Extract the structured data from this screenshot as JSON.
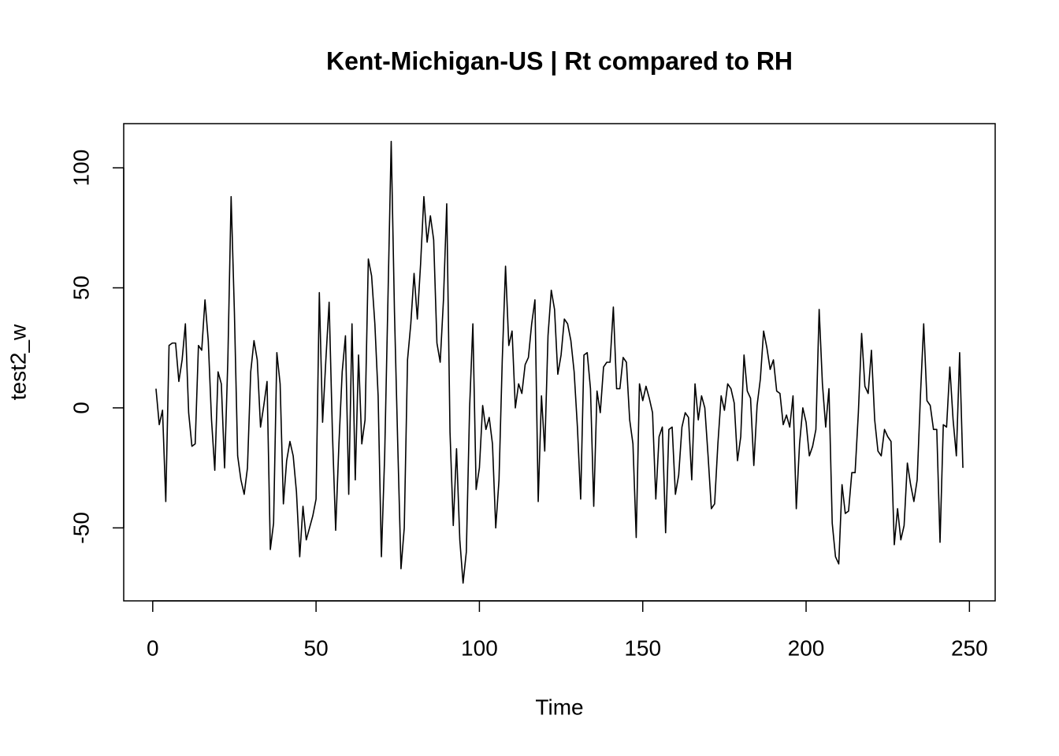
{
  "chart_data": {
    "type": "line",
    "title": "Kent-Michigan-US | Rt compared to RH",
    "x_label": "Time",
    "y_label": "test2_w",
    "x": [
      1,
      2,
      3,
      4,
      5,
      6,
      7,
      8,
      9,
      10,
      11,
      12,
      13,
      14,
      15,
      16,
      17,
      18,
      19,
      20,
      21,
      22,
      23,
      24,
      25,
      26,
      27,
      28,
      29,
      30,
      31,
      32,
      33,
      34,
      35,
      36,
      37,
      38,
      39,
      40,
      41,
      42,
      43,
      44,
      45,
      46,
      47,
      48,
      49,
      50,
      51,
      52,
      53,
      54,
      55,
      56,
      57,
      58,
      59,
      60,
      61,
      62,
      63,
      64,
      65,
      66,
      67,
      68,
      69,
      70,
      71,
      72,
      73,
      74,
      75,
      76,
      77,
      78,
      79,
      80,
      81,
      82,
      83,
      84,
      85,
      86,
      87,
      88,
      89,
      90,
      91,
      92,
      93,
      94,
      95,
      96,
      97,
      98,
      99,
      100,
      101,
      102,
      103,
      104,
      105,
      106,
      107,
      108,
      109,
      110,
      111,
      112,
      113,
      114,
      115,
      116,
      117,
      118,
      119,
      120,
      121,
      122,
      123,
      124,
      125,
      126,
      127,
      128,
      129,
      130,
      131,
      132,
      133,
      134,
      135,
      136,
      137,
      138,
      139,
      140,
      141,
      142,
      143,
      144,
      145,
      146,
      147,
      148,
      149,
      150,
      151,
      152,
      153,
      154,
      155,
      156,
      157,
      158,
      159,
      160,
      161,
      162,
      163,
      164,
      165,
      166,
      167,
      168,
      169,
      170,
      171,
      172,
      173,
      174,
      175,
      176,
      177,
      178,
      179,
      180,
      181,
      182,
      183,
      184,
      185,
      186,
      187,
      188,
      189,
      190,
      191,
      192,
      193,
      194,
      195,
      196,
      197,
      198,
      199,
      200,
      201,
      202,
      203,
      204,
      205,
      206,
      207,
      208,
      209,
      210,
      211,
      212,
      213,
      214,
      215,
      216,
      217,
      218,
      219,
      220,
      221,
      222,
      223,
      224,
      225,
      226,
      227,
      228,
      229,
      230,
      231,
      232,
      233,
      234,
      235,
      236,
      237,
      238,
      239,
      240,
      241,
      242,
      243,
      244,
      245,
      246,
      247,
      248
    ],
    "series": [
      {
        "name": "test2_w",
        "color": "#000000",
        "values": [
          8,
          -7,
          -1,
          -39,
          26,
          27,
          27,
          11,
          20,
          35,
          -2,
          -16,
          -15,
          26,
          24,
          45,
          28,
          -5,
          -26,
          15,
          10,
          -25,
          20,
          88,
          40,
          -20,
          -30,
          -36,
          -25,
          15,
          28,
          20,
          -8,
          1,
          11,
          -59,
          -48,
          23,
          10,
          -40,
          -22,
          -14,
          -20,
          -35,
          -62,
          -41,
          -55,
          -50,
          -45,
          -38,
          48,
          -6,
          20,
          44,
          -10,
          -51,
          -15,
          15,
          30,
          -36,
          35,
          -30,
          22,
          -15,
          -5,
          62,
          55,
          35,
          5,
          -62,
          -20,
          45,
          111,
          40,
          -15,
          -67,
          -50,
          20,
          35,
          56,
          37,
          60,
          88,
          69,
          80,
          70,
          27,
          19,
          45,
          85,
          -10,
          -49,
          -17,
          -55,
          -73,
          -60,
          0,
          35,
          -34,
          -25,
          1,
          -9,
          -4,
          -15,
          -50,
          -30,
          20,
          59,
          26,
          32,
          0,
          10,
          6,
          18,
          21,
          35,
          45,
          -39,
          5,
          -18,
          30,
          49,
          41,
          14,
          22,
          37,
          35,
          28,
          15,
          -8,
          -38,
          22,
          23,
          8,
          -41,
          7,
          -2,
          17,
          19,
          19,
          42,
          8,
          8,
          21,
          19,
          -5,
          -15,
          -54,
          10,
          3,
          9,
          4,
          -2,
          -38,
          -12,
          -8,
          -52,
          -9,
          -8,
          -36,
          -28,
          -8,
          -2,
          -4,
          -30,
          10,
          -5,
          5,
          0,
          -20,
          -42,
          -40,
          -15,
          5,
          -1,
          10,
          8,
          2,
          -22,
          -12,
          22,
          7,
          4,
          -24,
          1,
          12,
          32,
          25,
          16,
          20,
          7,
          6,
          -7,
          -3,
          -8,
          5,
          -42,
          -15,
          0,
          -6,
          -20,
          -16,
          -9,
          41,
          10,
          -8,
          8,
          -48,
          -62,
          -65,
          -32,
          -44,
          -43,
          -27,
          -27,
          -2,
          31,
          9,
          6,
          24,
          -5,
          -18,
          -20,
          -9,
          -12,
          -14,
          -57,
          -42,
          -55,
          -49,
          -23,
          -32,
          -39,
          -30,
          5,
          35,
          3,
          1,
          -9,
          -9,
          -56,
          -7,
          -8,
          17,
          -5,
          -20,
          23,
          -25
        ]
      }
    ],
    "xlim": [
      -8.88,
      257.88
    ],
    "ylim": [
      -80.4,
      118.4
    ],
    "xticks": [
      0,
      50,
      100,
      150,
      200,
      250
    ],
    "yticks": [
      -50,
      0,
      50,
      100
    ]
  }
}
